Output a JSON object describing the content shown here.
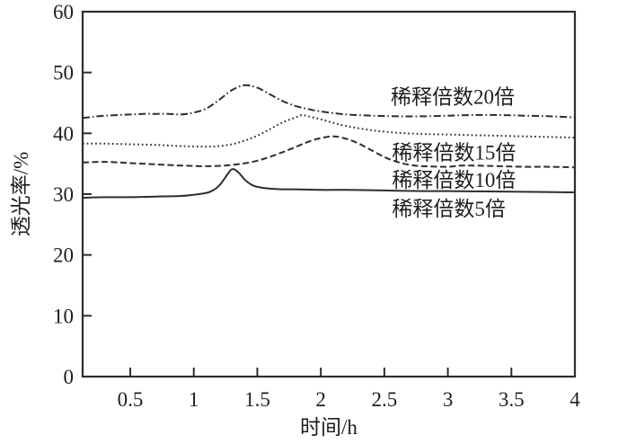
{
  "figure": {
    "background_color": "#ffffff",
    "text_color": "#1e1e1e"
  },
  "chart_data": {
    "type": "line",
    "title": "",
    "xlabel": "时间/h",
    "ylabel": "透光率/%",
    "xlim": [
      0.125,
      4
    ],
    "ylim": [
      0,
      60
    ],
    "x_ticks": [
      0.5,
      1,
      1.5,
      2,
      2.5,
      3,
      3.5,
      4
    ],
    "x_tick_labels": [
      "0.5",
      "1",
      "1.5",
      "2",
      "2.5",
      "3",
      "3.5",
      "4"
    ],
    "y_ticks": [
      0,
      10,
      20,
      30,
      40,
      50,
      60
    ],
    "y_tick_labels": [
      "0",
      "10",
      "20",
      "30",
      "40",
      "50",
      "60"
    ],
    "grid": false,
    "legend_position": "inline-annotations",
    "line_color": "#2e2e2e",
    "series": [
      {
        "name": "稀释倍数20倍",
        "line_style": "dashdot",
        "points": [
          [
            0.125,
            42.5
          ],
          [
            0.2,
            42.7
          ],
          [
            0.3,
            42.9
          ],
          [
            0.4,
            43.0
          ],
          [
            0.5,
            43.1
          ],
          [
            0.6,
            43.2
          ],
          [
            0.7,
            43.2
          ],
          [
            0.8,
            43.2
          ],
          [
            0.9,
            43.1
          ],
          [
            1.0,
            43.4
          ],
          [
            1.1,
            44.1
          ],
          [
            1.2,
            45.5
          ],
          [
            1.3,
            47.1
          ],
          [
            1.4,
            47.9
          ],
          [
            1.5,
            47.5
          ],
          [
            1.6,
            46.4
          ],
          [
            1.7,
            45.3
          ],
          [
            1.8,
            44.5
          ],
          [
            1.9,
            44.0
          ],
          [
            2.0,
            43.6
          ],
          [
            2.2,
            43.1
          ],
          [
            2.4,
            42.9
          ],
          [
            2.6,
            42.8
          ],
          [
            2.8,
            42.8
          ],
          [
            3.0,
            42.9
          ],
          [
            3.2,
            43.0
          ],
          [
            3.4,
            43.0
          ],
          [
            3.6,
            42.9
          ],
          [
            3.8,
            42.8
          ],
          [
            4.0,
            42.6
          ]
        ]
      },
      {
        "name": "稀释倍数15倍",
        "line_style": "dotted",
        "points": [
          [
            0.125,
            38.3
          ],
          [
            0.3,
            38.3
          ],
          [
            0.5,
            38.2
          ],
          [
            0.7,
            38.1
          ],
          [
            0.9,
            37.9
          ],
          [
            1.1,
            37.8
          ],
          [
            1.2,
            37.9
          ],
          [
            1.3,
            38.2
          ],
          [
            1.4,
            38.8
          ],
          [
            1.5,
            39.6
          ],
          [
            1.6,
            40.7
          ],
          [
            1.7,
            41.8
          ],
          [
            1.8,
            42.6
          ],
          [
            1.85,
            43.0
          ],
          [
            1.9,
            42.8
          ],
          [
            2.0,
            42.3
          ],
          [
            2.1,
            41.7
          ],
          [
            2.2,
            41.2
          ],
          [
            2.4,
            40.5
          ],
          [
            2.6,
            40.1
          ],
          [
            2.8,
            39.9
          ],
          [
            3.0,
            39.8
          ],
          [
            3.2,
            39.7
          ],
          [
            3.4,
            39.6
          ],
          [
            3.6,
            39.5
          ],
          [
            3.8,
            39.4
          ],
          [
            4.0,
            39.3
          ]
        ]
      },
      {
        "name": "稀释倍数10倍",
        "line_style": "dashed",
        "points": [
          [
            0.125,
            35.2
          ],
          [
            0.3,
            35.3
          ],
          [
            0.5,
            35.1
          ],
          [
            0.7,
            34.9
          ],
          [
            0.9,
            34.7
          ],
          [
            1.1,
            34.6
          ],
          [
            1.3,
            34.8
          ],
          [
            1.5,
            35.5
          ],
          [
            1.7,
            36.9
          ],
          [
            1.9,
            38.6
          ],
          [
            2.0,
            39.2
          ],
          [
            2.1,
            39.5
          ],
          [
            2.2,
            39.1
          ],
          [
            2.3,
            38.3
          ],
          [
            2.4,
            37.2
          ],
          [
            2.5,
            36.1
          ],
          [
            2.6,
            35.3
          ],
          [
            2.7,
            34.8
          ],
          [
            2.8,
            34.6
          ],
          [
            3.0,
            34.5
          ],
          [
            3.1,
            34.7
          ],
          [
            3.2,
            34.7
          ],
          [
            3.4,
            34.6
          ],
          [
            3.6,
            34.5
          ],
          [
            3.8,
            34.5
          ],
          [
            4.0,
            34.4
          ]
        ]
      },
      {
        "name": "稀释倍数5倍",
        "line_style": "solid",
        "points": [
          [
            0.125,
            29.4
          ],
          [
            0.3,
            29.5
          ],
          [
            0.5,
            29.5
          ],
          [
            0.7,
            29.6
          ],
          [
            0.9,
            29.7
          ],
          [
            1.0,
            29.9
          ],
          [
            1.1,
            30.2
          ],
          [
            1.15,
            30.6
          ],
          [
            1.2,
            31.4
          ],
          [
            1.25,
            32.8
          ],
          [
            1.3,
            34.1
          ],
          [
            1.35,
            33.6
          ],
          [
            1.4,
            32.4
          ],
          [
            1.45,
            31.6
          ],
          [
            1.5,
            31.2
          ],
          [
            1.6,
            30.9
          ],
          [
            1.7,
            30.8
          ],
          [
            1.8,
            30.8
          ],
          [
            2.0,
            30.7
          ],
          [
            2.2,
            30.7
          ],
          [
            2.5,
            30.6
          ],
          [
            2.8,
            30.5
          ],
          [
            3.0,
            30.5
          ],
          [
            3.5,
            30.4
          ],
          [
            4.0,
            30.3
          ]
        ]
      }
    ],
    "annotations": [
      {
        "text": "稀释倍数20倍",
        "x": 2.55,
        "y": 46.0
      },
      {
        "text": "稀释倍数15倍",
        "x": 2.56,
        "y": 36.9
      },
      {
        "text": "稀释倍数10倍",
        "x": 2.56,
        "y": 32.4
      },
      {
        "text": "稀释倍数5倍",
        "x": 2.56,
        "y": 27.6
      }
    ]
  }
}
